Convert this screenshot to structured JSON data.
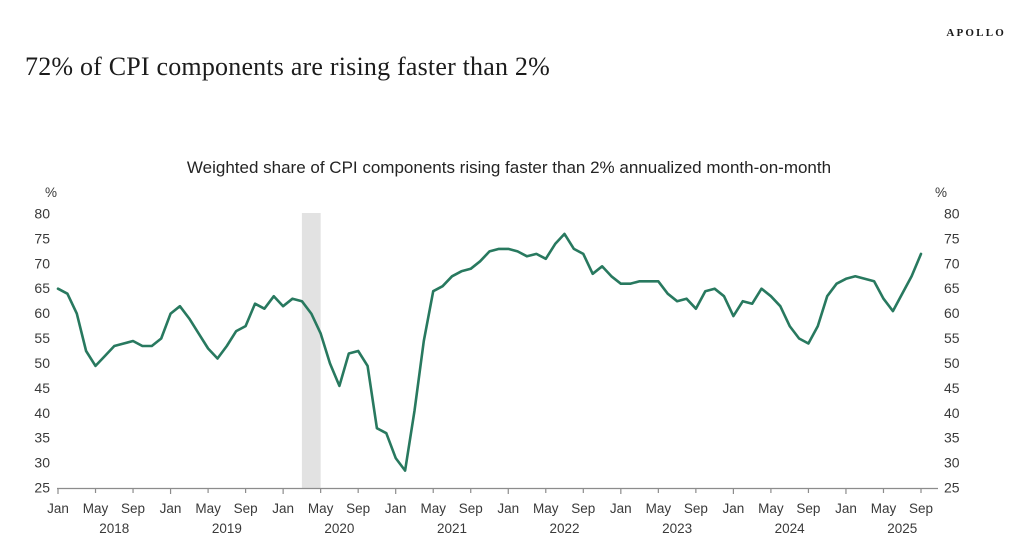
{
  "page": {
    "logo": "APOLLO",
    "title": "72% of CPI components are rising faster than 2%"
  },
  "chart_data": {
    "type": "line",
    "title": "Weighted share of CPI components rising faster than 2% annualized month-on-month",
    "y_unit": "%",
    "ylim": [
      25,
      80
    ],
    "y_tick_step": 5,
    "grid": false,
    "legend_position": "none",
    "x_start": "2018-01",
    "x_end": "2025-09",
    "x_tick_month_labels": [
      "Jan",
      "May",
      "Sep"
    ],
    "x_tick_month_numbers": [
      1,
      5,
      9
    ],
    "year_labels": [
      "2018",
      "2019",
      "2020",
      "2021",
      "2022",
      "2023",
      "2024",
      "2025"
    ],
    "line_color": "#28795f",
    "axis_color": "#8c8c8c",
    "label_color": "#3a3a3a",
    "recession_band": {
      "start": "2020-03",
      "end": "2020-05",
      "color": "#e2e2e2"
    },
    "highlight_value": {
      "date": "2025-09",
      "value": 72
    },
    "series": [
      {
        "name": "Weighted share of CPI components rising faster than 2% annualized month-on-month",
        "start": "2018-01",
        "frequency": "monthly",
        "values": [
          65,
          64,
          60,
          52.5,
          49.5,
          51.5,
          53.5,
          54,
          54.5,
          53.5,
          53.5,
          55,
          60,
          61.5,
          59,
          56,
          53,
          51,
          53.5,
          56.5,
          57.5,
          62,
          61,
          63.5,
          61.5,
          63,
          62.5,
          60,
          56,
          50,
          45.5,
          52,
          52.5,
          49.5,
          37,
          36,
          31,
          28.5,
          40.5,
          54.5,
          64.5,
          65.5,
          67.5,
          68.5,
          69,
          70.5,
          72.5,
          73,
          73,
          72.5,
          71.5,
          72,
          71,
          74,
          76,
          73,
          72,
          68,
          69.5,
          67.5,
          66,
          66,
          66.5,
          66.5,
          66.5,
          64,
          62.5,
          63,
          61,
          64.5,
          65,
          63.5,
          59.5,
          62.5,
          62,
          65,
          63.5,
          61.5,
          57.5,
          55,
          54,
          57.5,
          63.5,
          66,
          67,
          67.5,
          67,
          66.5,
          63,
          60.5,
          64,
          67.5,
          72
        ]
      }
    ]
  }
}
